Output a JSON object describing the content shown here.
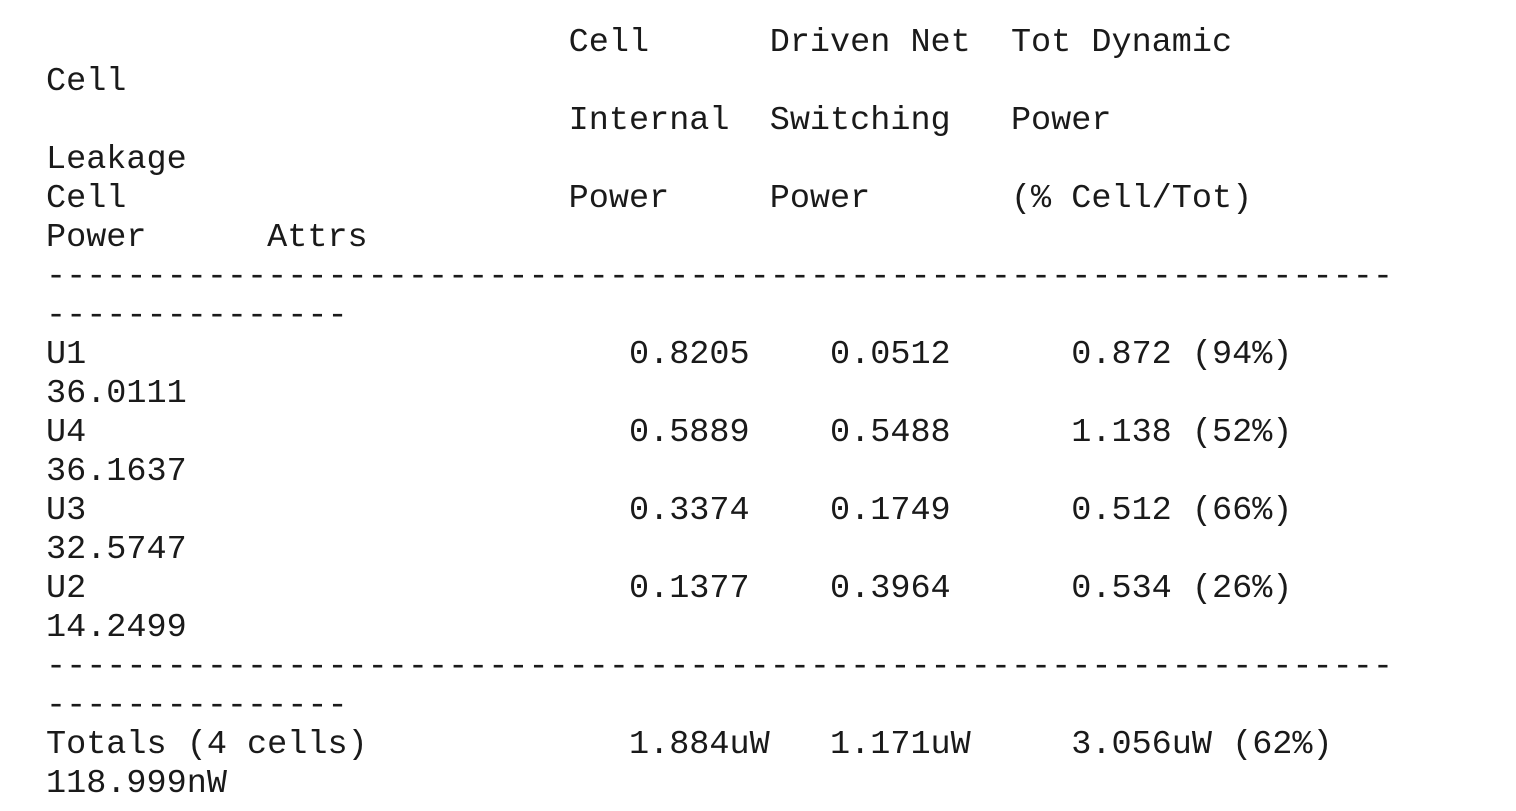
{
  "report_lines": [
    "                          Cell      Driven Net  Tot Dynamic",
    "Cell",
    "                          Internal  Switching   Power",
    "Leakage",
    "Cell                      Power     Power       (% Cell/Tot)",
    "Power      Attrs",
    "-------------------------------------------------------------------",
    "---------------",
    "U1                           0.8205    0.0512      0.872 (94%)",
    "36.0111",
    "U4                           0.5889    0.5488      1.138 (52%)",
    "36.1637",
    "U3                           0.3374    0.1749      0.512 (66%)",
    "32.5747",
    "U2                           0.1377    0.3964      0.534 (26%)",
    "14.2499",
    "-------------------------------------------------------------------",
    "---------------",
    "Totals (4 cells)             1.884uW   1.171uW     3.056uW (62%)",
    "118.999nW"
  ]
}
